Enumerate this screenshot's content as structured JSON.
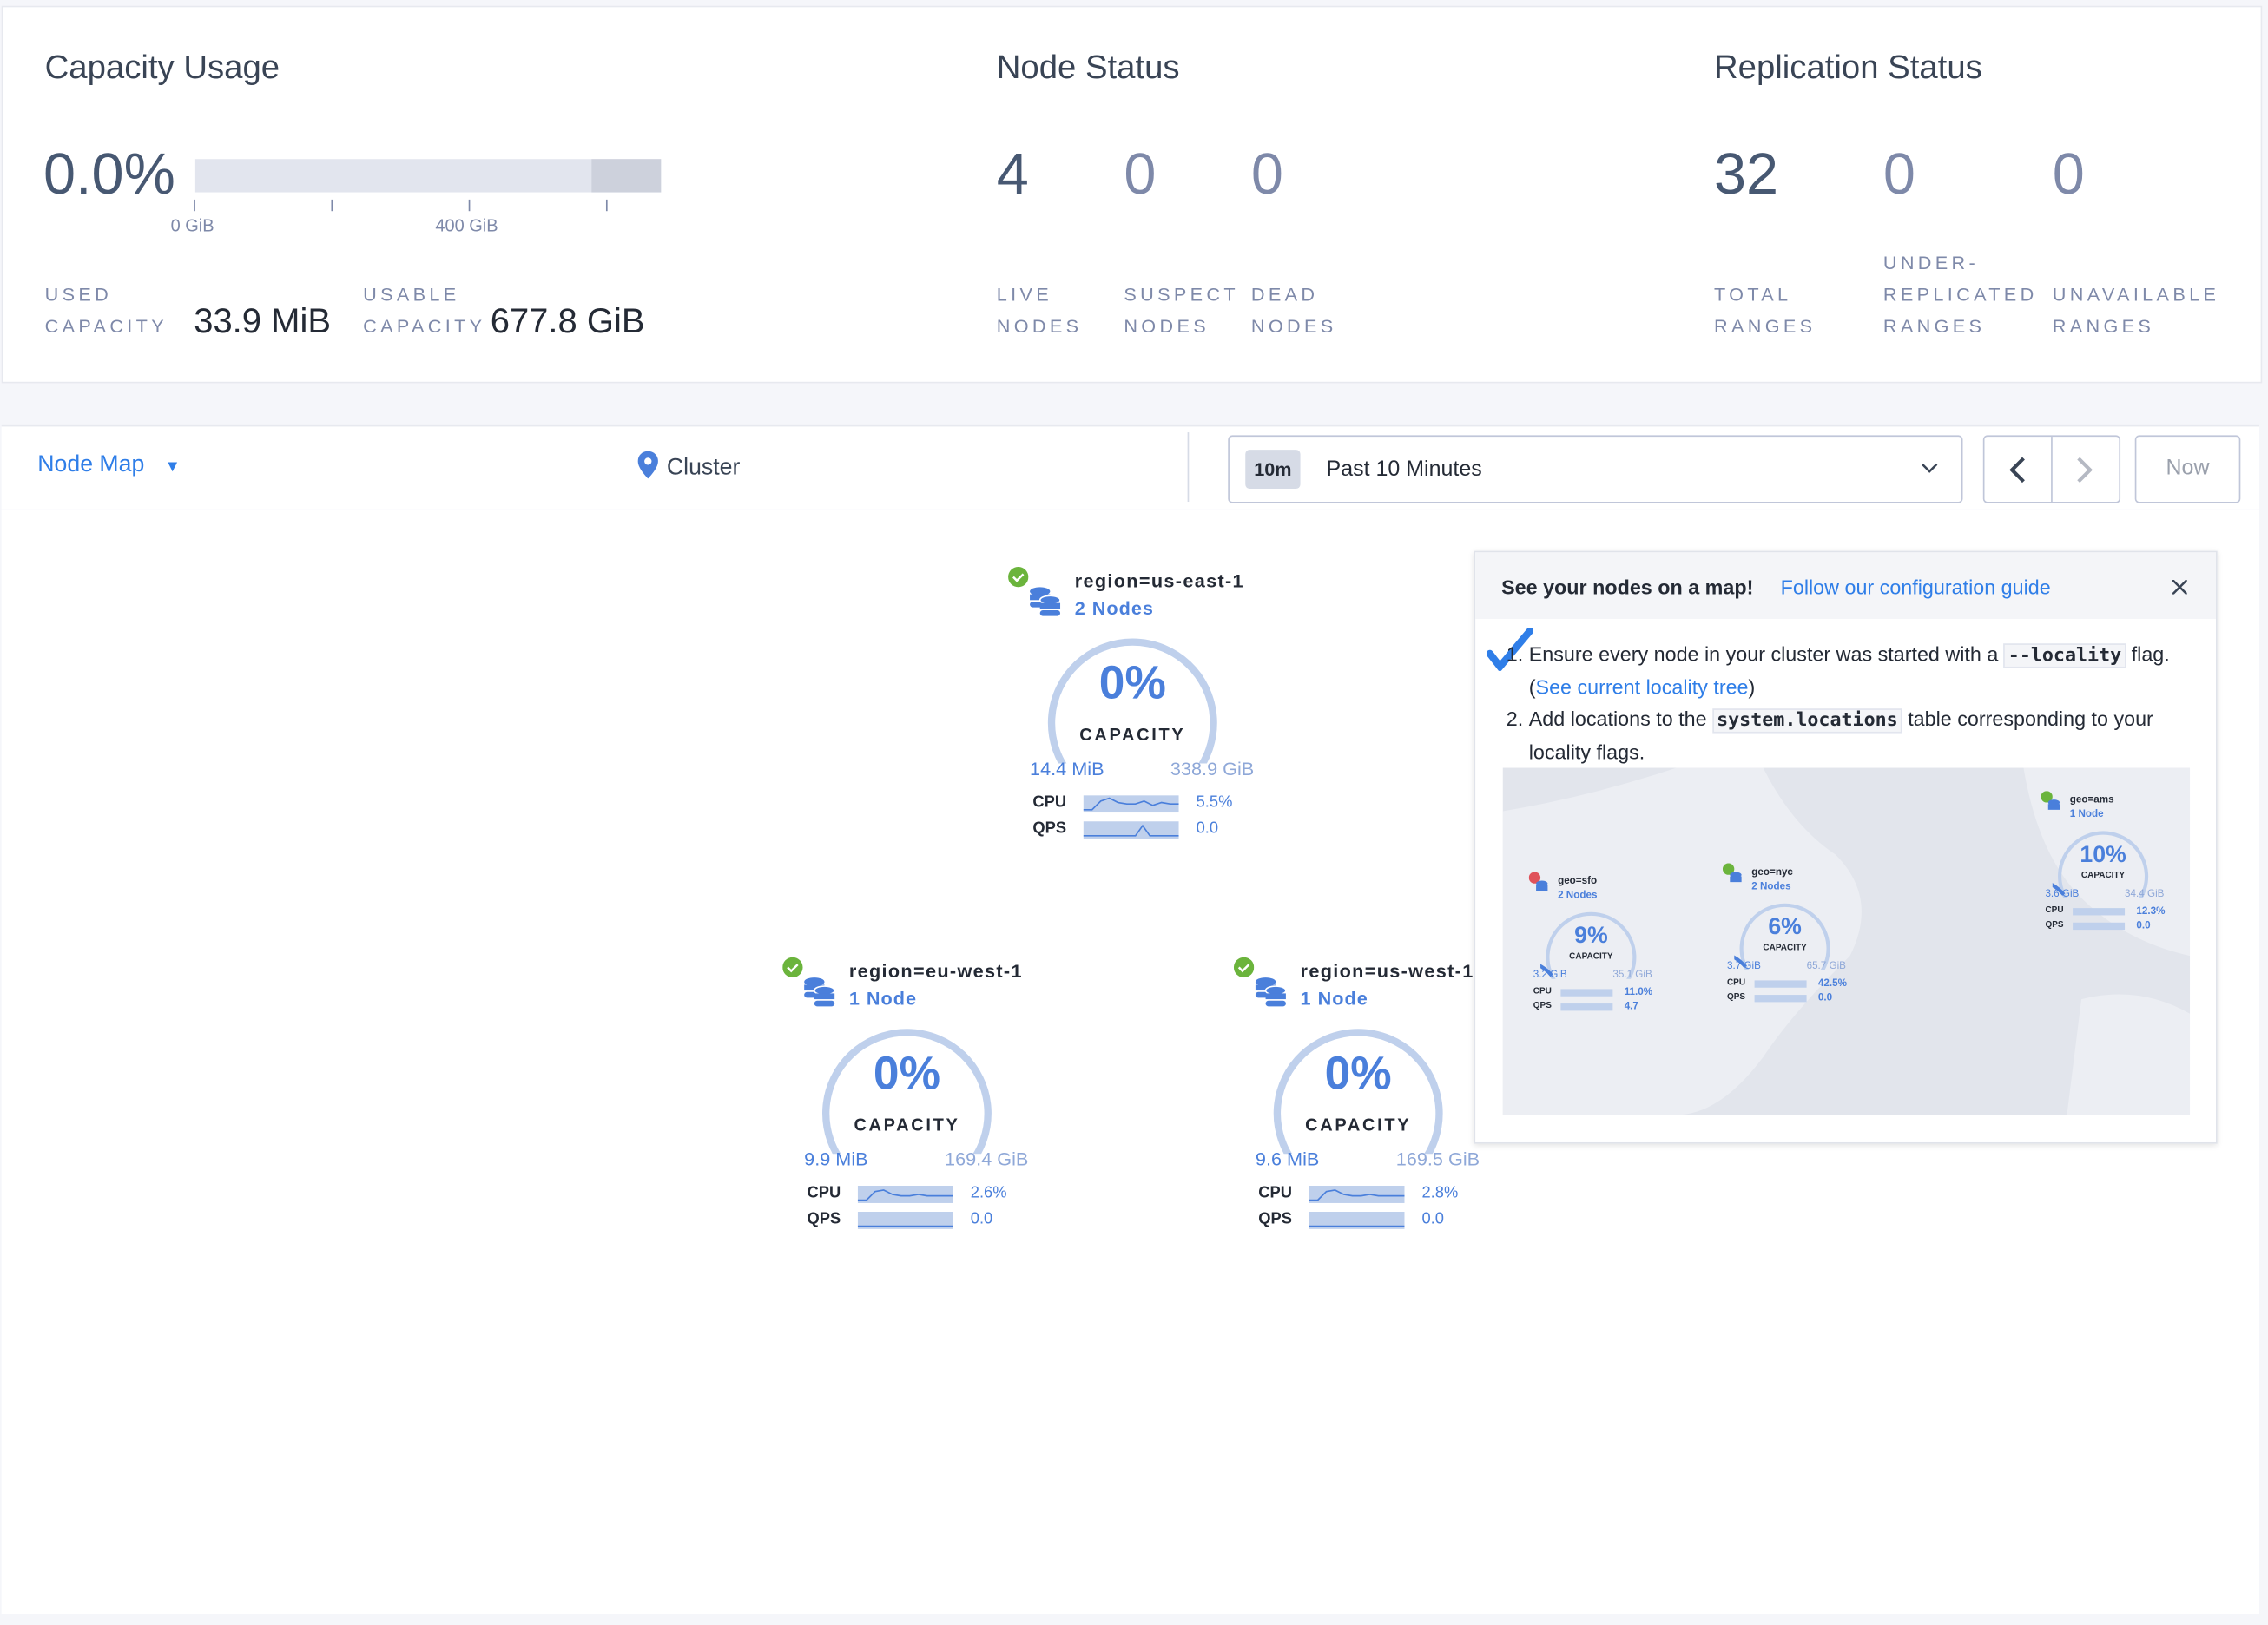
{
  "capacity": {
    "title": "Capacity Usage",
    "percent": "0.0%",
    "usage_fraction": 0.0,
    "axis_ticks": [
      "0 GiB",
      "400 GiB"
    ],
    "used_label_1": "USED",
    "used_label_2": "CAPACITY",
    "used_value": "33.9 MiB",
    "usable_label_1": "USABLE",
    "usable_label_2": "CAPACITY",
    "usable_value": "677.8 GiB"
  },
  "node_status": {
    "title": "Node Status",
    "stats": [
      {
        "value": "4",
        "label_1": "LIVE",
        "label_2": "NODES"
      },
      {
        "value": "0",
        "label_1": "SUSPECT",
        "label_2": "NODES"
      },
      {
        "value": "0",
        "label_1": "DEAD",
        "label_2": "NODES"
      }
    ]
  },
  "replication_status": {
    "title": "Replication Status",
    "stats": [
      {
        "value": "32",
        "label_0": "",
        "label_1": "TOTAL",
        "label_2": "RANGES"
      },
      {
        "value": "0",
        "label_0": "UNDER-",
        "label_1": "REPLICATED",
        "label_2": "RANGES"
      },
      {
        "value": "0",
        "label_0": "",
        "label_1": "UNAVAILABLE",
        "label_2": "RANGES"
      }
    ]
  },
  "toolbar": {
    "view_select": "Node Map",
    "breadcrumb": "Cluster",
    "time_chip": "10m",
    "time_range": "Past 10 Minutes",
    "now_label": "Now"
  },
  "nodes": [
    {
      "name": "region=us-east-1",
      "count": "2 Nodes",
      "percent": "0%",
      "capacity_label": "CAPACITY",
      "used": "14.4 MiB",
      "total": "338.9 GiB",
      "cpu_label": "CPU",
      "cpu": "5.5%",
      "qps_label": "QPS",
      "qps": "0.0",
      "status": "healthy"
    },
    {
      "name": "region=eu-west-1",
      "count": "1 Node",
      "percent": "0%",
      "capacity_label": "CAPACITY",
      "used": "9.9 MiB",
      "total": "169.4 GiB",
      "cpu_label": "CPU",
      "cpu": "2.6%",
      "qps_label": "QPS",
      "qps": "0.0",
      "status": "healthy"
    },
    {
      "name": "region=us-west-1",
      "count": "1 Node",
      "percent": "0%",
      "capacity_label": "CAPACITY",
      "used": "9.6 MiB",
      "total": "169.5 GiB",
      "cpu_label": "CPU",
      "cpu": "2.8%",
      "qps_label": "QPS",
      "qps": "0.0",
      "status": "healthy"
    }
  ],
  "popup": {
    "title": "See your nodes on a map!",
    "guide_link": "Follow our configuration guide",
    "step1_prefix": "Ensure every node in your cluster was started with a ",
    "step1_code": "--locality",
    "step1_mid": " flag. (",
    "step1_link": "See current locality tree",
    "step1_suffix": ")",
    "step2_prefix": "Add locations to the ",
    "step2_code": "system.locations",
    "step2_suffix": " table corresponding to your locality flags.",
    "example_map": [
      {
        "name": "geo=sfo",
        "count": "2 Nodes",
        "percent": "9%",
        "capacity_label": "CAPACITY",
        "used": "3.2 GiB",
        "total": "35.1 GiB",
        "cpu": "11.0%",
        "qps": "4.7",
        "status": "alert"
      },
      {
        "name": "geo=nyc",
        "count": "2 Nodes",
        "percent": "6%",
        "capacity_label": "CAPACITY",
        "used": "3.7 GiB",
        "total": "65.7 GiB",
        "cpu": "42.5%",
        "qps": "0.0",
        "status": "healthy"
      },
      {
        "name": "geo=ams",
        "count": "1 Node",
        "percent": "10%",
        "capacity_label": "CAPACITY",
        "used": "3.6 GiB",
        "total": "34.4 GiB",
        "cpu": "12.3%",
        "qps": "0.0",
        "status": "healthy"
      }
    ]
  },
  "colors": {
    "accent": "#4a7fdb",
    "link": "#2f7ee8",
    "healthy": "#6bb43c",
    "alert": "#e0525a",
    "gauge_track": "#bfd0ec"
  }
}
